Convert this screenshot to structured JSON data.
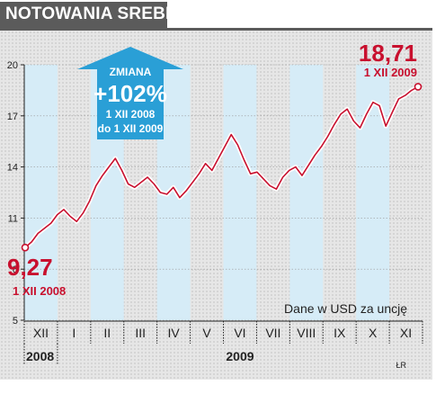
{
  "header": {
    "title": "NOTOWANIA SREBRA"
  },
  "colors": {
    "line": "#c8102e",
    "highlight": "#d6ecf7",
    "arrow": "#2a9fd6",
    "title_bg": "#5b5b5b"
  },
  "note": "Dane w USD za uncję",
  "credit": "ŁR",
  "callout": {
    "heading": "ZMIANA",
    "value": "+102%",
    "from": "1 XII 2008",
    "to": "do 1 XII 2009"
  },
  "start_point": {
    "value": "9,27",
    "date": "1 XII 2008"
  },
  "end_point": {
    "value": "18,71",
    "date": "1 XII 2009"
  },
  "chart_data": {
    "type": "line",
    "title": "NOTOWANIA SREBRA",
    "xlabel": "",
    "ylabel": "",
    "ylim": [
      5,
      20
    ],
    "yticks": [
      5,
      8,
      11,
      14,
      17,
      20
    ],
    "grid": true,
    "months": [
      "XII",
      "I",
      "II",
      "III",
      "IV",
      "V",
      "VI",
      "VII",
      "VIII",
      "IX",
      "X",
      "XI"
    ],
    "years": [
      "2008",
      "2009"
    ],
    "series": [
      {
        "values": [
          9.27,
          9.6,
          10.1,
          10.4,
          10.7,
          11.2,
          11.5,
          11.1,
          10.8,
          11.3,
          12.0,
          12.9,
          13.5,
          14.0,
          14.5,
          13.8,
          13.0,
          12.8,
          13.1,
          13.4,
          13.0,
          12.5,
          12.4,
          12.8,
          12.2,
          12.6,
          13.1,
          13.6,
          14.2,
          13.8,
          14.5,
          15.2,
          15.9,
          15.3,
          14.4,
          13.6,
          13.7,
          13.3,
          12.9,
          12.7,
          13.4,
          13.8,
          14.0,
          13.5,
          14.1,
          14.7,
          15.2,
          15.8,
          16.5,
          17.1,
          17.4,
          16.7,
          16.3,
          17.1,
          17.8,
          17.6,
          16.4,
          17.2,
          18.0,
          18.2,
          18.5,
          18.71
        ]
      }
    ],
    "annotations": [
      {
        "label": "9,27",
        "date": "1 XII 2008"
      },
      {
        "label": "18,71",
        "date": "1 XII 2009"
      },
      {
        "label": "+102%"
      }
    ]
  }
}
